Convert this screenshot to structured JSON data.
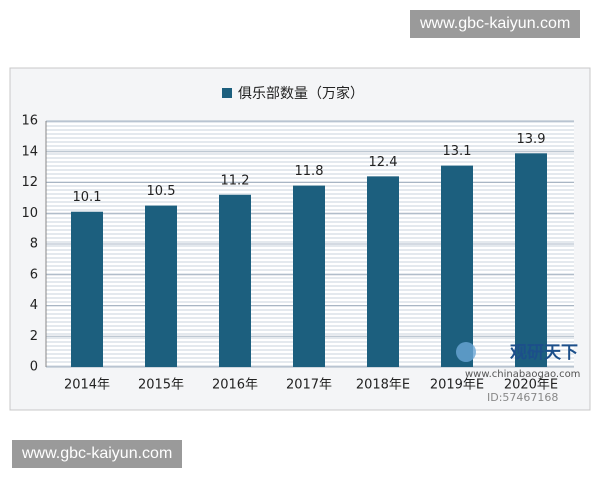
{
  "chart_data": {
    "type": "bar",
    "categories": [
      "2014年",
      "2015年",
      "2016年",
      "2017年",
      "2018年E",
      "2019年E",
      "2020年E"
    ],
    "series": [
      {
        "name": "俱乐部数量（万家）",
        "color": "#1c5f7e",
        "values": [
          10.1,
          10.5,
          11.2,
          11.8,
          12.4,
          13.1,
          13.9
        ]
      }
    ],
    "ylim": [
      0,
      16
    ],
    "yticks": [
      0,
      2,
      4,
      6,
      8,
      10,
      12,
      14,
      16
    ],
    "grid": true,
    "legend": "top"
  },
  "watermarks": [
    "www.gbc-kaiyun.com",
    "www.gbc-kaiyun.com"
  ],
  "logo": {
    "name": "观研天下",
    "site": "www.chinabaogao.com",
    "id": "ID:57467168"
  }
}
